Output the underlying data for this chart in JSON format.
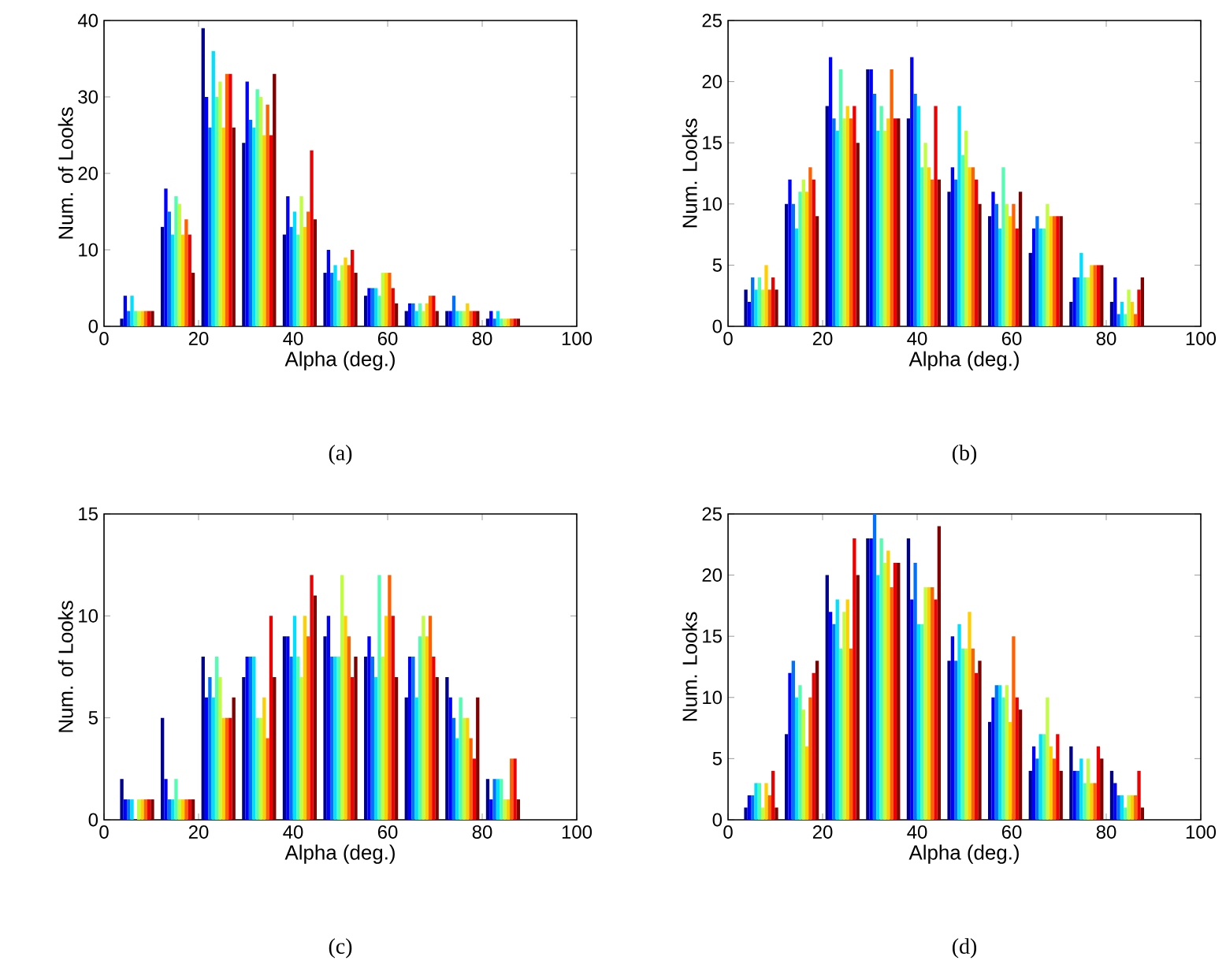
{
  "chart_data": [
    {
      "type": "bar",
      "xlabel": "Alpha (deg.)",
      "ylabel": "Num. of Looks",
      "annotations": [
        "(a)"
      ],
      "x": [
        7,
        15.6,
        24.2,
        32.8,
        41.4,
        50,
        58.6,
        67.2,
        75.8,
        84.4
      ],
      "xlim": [
        0,
        100
      ],
      "xticks": [
        0,
        20,
        40,
        60,
        80,
        100
      ],
      "ylim": [
        0,
        40
      ],
      "yticks": [
        0,
        10,
        20,
        30,
        40
      ],
      "series": [
        {
          "color": "#00008f",
          "values": [
            1,
            13,
            39,
            24,
            12,
            7,
            4,
            2,
            2,
            1
          ]
        },
        {
          "color": "#0000ff",
          "values": [
            4,
            18,
            30,
            32,
            17,
            10,
            5,
            3,
            2,
            2
          ]
        },
        {
          "color": "#0070ff",
          "values": [
            2,
            15,
            26,
            27,
            13,
            7,
            5,
            3,
            4,
            1
          ]
        },
        {
          "color": "#00dfff",
          "values": [
            4,
            12,
            36,
            26,
            15,
            8,
            5,
            2,
            2,
            2
          ]
        },
        {
          "color": "#50ffaf",
          "values": [
            2,
            17,
            30,
            31,
            12,
            6,
            4,
            3,
            2,
            1
          ]
        },
        {
          "color": "#bfff40",
          "values": [
            2,
            16,
            32,
            30,
            17,
            8,
            7,
            2,
            2,
            1
          ]
        },
        {
          "color": "#ffcf00",
          "values": [
            2,
            12,
            26,
            25,
            13,
            9,
            7,
            3,
            3,
            1
          ]
        },
        {
          "color": "#ff6000",
          "values": [
            2,
            14,
            33,
            29,
            15,
            8,
            7,
            4,
            2,
            1
          ]
        },
        {
          "color": "#ef0000",
          "values": [
            2,
            12,
            33,
            25,
            23,
            10,
            5,
            4,
            2,
            1
          ]
        },
        {
          "color": "#800000",
          "values": [
            2,
            7,
            26,
            33,
            14,
            7,
            3,
            2,
            2,
            1
          ]
        }
      ]
    },
    {
      "type": "bar",
      "xlabel": "Alpha (deg.)",
      "ylabel": "Num. Looks",
      "annotations": [
        "(b)"
      ],
      "x": [
        7,
        15.6,
        24.2,
        32.8,
        41.4,
        50,
        58.6,
        67.2,
        75.8,
        84.4
      ],
      "xlim": [
        0,
        100
      ],
      "xticks": [
        0,
        20,
        40,
        60,
        80,
        100
      ],
      "ylim": [
        0,
        25
      ],
      "yticks": [
        0,
        5,
        10,
        15,
        20,
        25
      ],
      "series": [
        {
          "color": "#00008f",
          "values": [
            3,
            10,
            18,
            21,
            17,
            11,
            9,
            6,
            2,
            2
          ]
        },
        {
          "color": "#0000ff",
          "values": [
            2,
            12,
            22,
            21,
            22,
            13,
            11,
            8,
            4,
            4
          ]
        },
        {
          "color": "#0070ff",
          "values": [
            4,
            10,
            17,
            19,
            19,
            12,
            10,
            9,
            4,
            1
          ]
        },
        {
          "color": "#00dfff",
          "values": [
            3,
            8,
            16,
            16,
            18,
            18,
            8,
            8,
            6,
            2
          ]
        },
        {
          "color": "#50ffaf",
          "values": [
            4,
            11,
            21,
            18,
            13,
            14,
            13,
            8,
            4,
            1
          ]
        },
        {
          "color": "#bfff40",
          "values": [
            3,
            12,
            17,
            16,
            15,
            16,
            10,
            10,
            4,
            3
          ]
        },
        {
          "color": "#ffcf00",
          "values": [
            5,
            11,
            18,
            17,
            13,
            13,
            9,
            9,
            5,
            2
          ]
        },
        {
          "color": "#ff6000",
          "values": [
            3,
            13,
            17,
            21,
            12,
            13,
            10,
            9,
            5,
            1
          ]
        },
        {
          "color": "#ef0000",
          "values": [
            4,
            12,
            18,
            17,
            18,
            12,
            8,
            9,
            5,
            3
          ]
        },
        {
          "color": "#800000",
          "values": [
            3,
            9,
            15,
            17,
            12,
            10,
            11,
            9,
            5,
            4
          ]
        }
      ]
    },
    {
      "type": "bar",
      "xlabel": "Alpha (deg.)",
      "ylabel": "Num. of Looks",
      "annotations": [
        "(c)"
      ],
      "x": [
        7,
        15.6,
        24.2,
        32.8,
        41.4,
        50,
        58.6,
        67.2,
        75.8,
        84.4
      ],
      "xlim": [
        0,
        100
      ],
      "xticks": [
        0,
        20,
        40,
        60,
        80,
        100
      ],
      "ylim": [
        0,
        15
      ],
      "yticks": [
        0,
        5,
        10,
        15
      ],
      "series": [
        {
          "color": "#00008f",
          "values": [
            2,
            5,
            8,
            7,
            9,
            9,
            8,
            6,
            7,
            2
          ]
        },
        {
          "color": "#0000ff",
          "values": [
            1,
            2,
            6,
            8,
            9,
            10,
            9,
            8,
            6,
            1
          ]
        },
        {
          "color": "#0070ff",
          "values": [
            1,
            1,
            7,
            8,
            8,
            8,
            8,
            8,
            5,
            2
          ]
        },
        {
          "color": "#00dfff",
          "values": [
            1,
            1,
            6,
            8,
            10,
            8,
            7,
            6,
            4,
            2
          ]
        },
        {
          "color": "#50ffaf",
          "values": [
            0,
            2,
            8,
            5,
            8,
            8,
            12,
            9,
            6,
            2
          ]
        },
        {
          "color": "#bfff40",
          "values": [
            1,
            1,
            7,
            5,
            7,
            12,
            8,
            10,
            5,
            1
          ]
        },
        {
          "color": "#ffcf00",
          "values": [
            1,
            1,
            5,
            6,
            10,
            10,
            10,
            9,
            5,
            1
          ]
        },
        {
          "color": "#ff6000",
          "values": [
            1,
            1,
            5,
            4,
            9,
            9,
            12,
            10,
            4,
            3
          ]
        },
        {
          "color": "#ef0000",
          "values": [
            1,
            1,
            5,
            10,
            12,
            7,
            10,
            8,
            3,
            3
          ]
        },
        {
          "color": "#800000",
          "values": [
            1,
            1,
            6,
            7,
            11,
            8,
            7,
            7,
            6,
            1
          ]
        }
      ]
    },
    {
      "type": "bar",
      "xlabel": "Alpha (deg.)",
      "ylabel": "Num. Looks",
      "annotations": [
        "(d)"
      ],
      "x": [
        7,
        15.6,
        24.2,
        32.8,
        41.4,
        50,
        58.6,
        67.2,
        75.8,
        84.4
      ],
      "xlim": [
        0,
        100
      ],
      "xticks": [
        0,
        20,
        40,
        60,
        80,
        100
      ],
      "ylim": [
        0,
        25
      ],
      "yticks": [
        0,
        5,
        10,
        15,
        20,
        25
      ],
      "series": [
        {
          "color": "#00008f",
          "values": [
            1,
            7,
            20,
            23,
            23,
            13,
            8,
            4,
            6,
            4
          ]
        },
        {
          "color": "#0000ff",
          "values": [
            2,
            12,
            17,
            23,
            18,
            15,
            10,
            6,
            4,
            3
          ]
        },
        {
          "color": "#0070ff",
          "values": [
            2,
            13,
            16,
            25,
            21,
            13,
            11,
            5,
            4,
            2
          ]
        },
        {
          "color": "#00dfff",
          "values": [
            3,
            10,
            18,
            20,
            16,
            16,
            11,
            7,
            5,
            2
          ]
        },
        {
          "color": "#50ffaf",
          "values": [
            3,
            11,
            14,
            23,
            16,
            14,
            10,
            7,
            3,
            1
          ]
        },
        {
          "color": "#bfff40",
          "values": [
            1,
            9,
            17,
            21,
            19,
            14,
            11,
            10,
            5,
            2
          ]
        },
        {
          "color": "#ffcf00",
          "values": [
            3,
            6,
            18,
            22,
            19,
            17,
            8,
            6,
            3,
            2
          ]
        },
        {
          "color": "#ff6000",
          "values": [
            2,
            10,
            14,
            19,
            19,
            14,
            15,
            5,
            3,
            2
          ]
        },
        {
          "color": "#ef0000",
          "values": [
            4,
            12,
            23,
            21,
            18,
            12,
            10,
            7,
            6,
            4
          ]
        },
        {
          "color": "#800000",
          "values": [
            1,
            13,
            20,
            21,
            24,
            13,
            9,
            4,
            5,
            1
          ]
        }
      ]
    }
  ]
}
